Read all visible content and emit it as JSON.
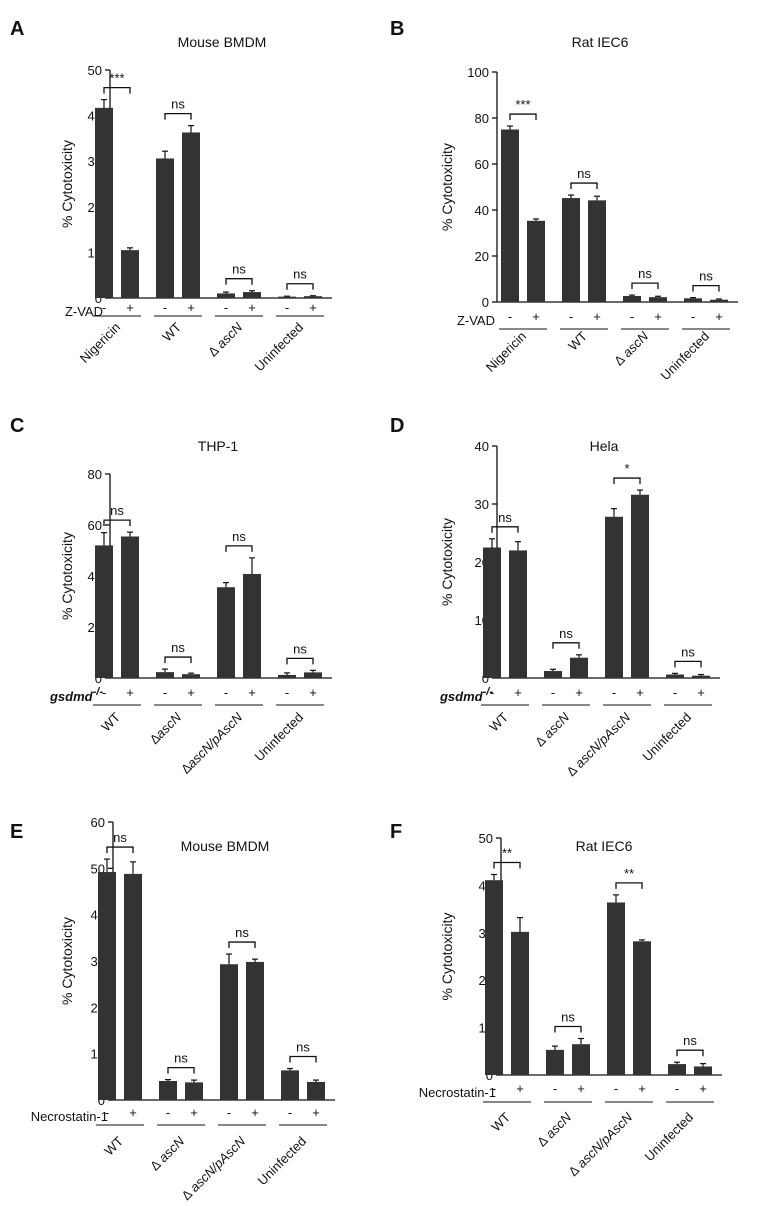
{
  "figure": {
    "panel_letters": [
      "A",
      "B",
      "C",
      "D",
      "E",
      "F"
    ]
  },
  "chart_data": [
    {
      "panel": "A",
      "type": "bar",
      "title": "Mouse BMDM",
      "ylabel": "% Cytotoxicity",
      "ylim": [
        0,
        50
      ],
      "yticks": [
        0,
        10,
        20,
        30,
        40,
        50
      ],
      "treatment_label": "Z-VAD",
      "signs": [
        "-",
        "+"
      ],
      "groups": [
        {
          "label": "Nigericin",
          "values": [
            41.7,
            10.5
          ],
          "errors": [
            1.8,
            0.5
          ],
          "sig": "***"
        },
        {
          "label": "WT",
          "values": [
            30.6,
            36.3
          ],
          "errors": [
            1.6,
            1.5
          ],
          "sig": "ns"
        },
        {
          "label": "∆ ascN",
          "values": [
            1.0,
            1.3
          ],
          "errors": [
            0.3,
            0.3
          ],
          "sig": "ns"
        },
        {
          "label": "Uninfected",
          "values": [
            0.3,
            0.4
          ],
          "errors": [
            0.1,
            0.1
          ],
          "sig": "ns"
        }
      ]
    },
    {
      "panel": "B",
      "type": "bar",
      "title": "Rat IEC6",
      "ylabel": "% Cytotoxicity",
      "ylim": [
        0,
        100
      ],
      "yticks": [
        0,
        20,
        40,
        60,
        80,
        100
      ],
      "treatment_label": "Z-VAD",
      "signs": [
        "-",
        "+"
      ],
      "groups": [
        {
          "label": "Nigericin",
          "values": [
            75.0,
            35.3
          ],
          "errors": [
            1.5,
            0.8
          ],
          "sig": "***"
        },
        {
          "label": "WT",
          "values": [
            45.2,
            44.2
          ],
          "errors": [
            1.3,
            1.8
          ],
          "sig": "ns"
        },
        {
          "label": "∆ ascN",
          "values": [
            2.6,
            2.1
          ],
          "errors": [
            0.4,
            0.4
          ],
          "sig": "ns"
        },
        {
          "label": "Uninfected",
          "values": [
            1.6,
            1.0
          ],
          "errors": [
            0.3,
            0.3
          ],
          "sig": "ns"
        }
      ]
    },
    {
      "panel": "C",
      "type": "bar",
      "title": "THP-1",
      "ylabel": "% Cytotoxicity",
      "ylim": [
        0,
        80
      ],
      "yticks": [
        0,
        20,
        40,
        60,
        80
      ],
      "treatment_label": "gsdmd",
      "treatment_sup": "-/-",
      "signs": [
        "-",
        "+"
      ],
      "groups": [
        {
          "label": "WT",
          "values": [
            52.0,
            55.5
          ],
          "errors": [
            5.0,
            1.7
          ],
          "sig": "ns"
        },
        {
          "label": "∆ascN",
          "values": [
            2.3,
            1.5
          ],
          "errors": [
            1.2,
            0.4
          ],
          "sig": "ns"
        },
        {
          "label": "∆ascN/pAscN",
          "values": [
            35.6,
            40.8
          ],
          "errors": [
            1.8,
            6.3
          ],
          "sig": "ns"
        },
        {
          "label": "Uninfected",
          "values": [
            1.2,
            2.2
          ],
          "errors": [
            0.8,
            0.8
          ],
          "sig": "ns"
        }
      ]
    },
    {
      "panel": "D",
      "type": "bar",
      "title": "Hela",
      "ylabel": "% Cytotoxicity",
      "ylim": [
        0,
        40
      ],
      "yticks": [
        0,
        10,
        20,
        30,
        40
      ],
      "treatment_label": "gsdmd",
      "treatment_sup": "-/-",
      "signs": [
        "-",
        "+"
      ],
      "groups": [
        {
          "label": "WT",
          "values": [
            22.5,
            22.0
          ],
          "errors": [
            1.5,
            1.5
          ],
          "sig": "ns"
        },
        {
          "label": "∆ ascN",
          "values": [
            1.2,
            3.5
          ],
          "errors": [
            0.3,
            0.5
          ],
          "sig": "ns"
        },
        {
          "label": "∆ ascN/pAscN",
          "values": [
            27.8,
            31.6
          ],
          "errors": [
            1.4,
            0.8
          ],
          "sig": "*"
        },
        {
          "label": "Uninfected",
          "values": [
            0.6,
            0.4
          ],
          "errors": [
            0.2,
            0.2
          ],
          "sig": "ns"
        }
      ]
    },
    {
      "panel": "E",
      "type": "bar",
      "title": "Mouse BMDM",
      "ylabel": "% Cytotoxicity",
      "ylim": [
        0,
        60
      ],
      "yticks": [
        0,
        10,
        20,
        30,
        40,
        50,
        60
      ],
      "treatment_label": "Necrostatin-1",
      "signs": [
        "-",
        "+"
      ],
      "groups": [
        {
          "label": "WT",
          "values": [
            49.2,
            48.8
          ],
          "errors": [
            2.8,
            2.6
          ],
          "sig": "ns"
        },
        {
          "label": "∆ ascN",
          "values": [
            4.1,
            3.8
          ],
          "errors": [
            0.3,
            0.5
          ],
          "sig": "ns"
        },
        {
          "label": "∆ ascN/pAscN",
          "values": [
            29.3,
            29.8
          ],
          "errors": [
            2.2,
            0.6
          ],
          "sig": "ns"
        },
        {
          "label": "Uninfected",
          "values": [
            6.4,
            3.9
          ],
          "errors": [
            0.4,
            0.4
          ],
          "sig": "ns"
        }
      ]
    },
    {
      "panel": "F",
      "type": "bar",
      "title": "Rat IEC6",
      "ylabel": "% Cytotoxicity",
      "ylim": [
        0,
        50
      ],
      "yticks": [
        0,
        10,
        20,
        30,
        40,
        50
      ],
      "treatment_label": "Necrostatin-1",
      "signs": [
        "-",
        "+"
      ],
      "groups": [
        {
          "label": "WT",
          "values": [
            41.1,
            30.2
          ],
          "errors": [
            1.2,
            3.0
          ],
          "sig": "**"
        },
        {
          "label": "∆ ascN",
          "values": [
            5.3,
            6.5
          ],
          "errors": [
            0.8,
            1.2
          ],
          "sig": "ns"
        },
        {
          "label": "∆ ascN/pAscN",
          "values": [
            36.4,
            28.2
          ],
          "errors": [
            1.6,
            0.3
          ],
          "sig": "**"
        },
        {
          "label": "Uninfected",
          "values": [
            2.3,
            1.8
          ],
          "errors": [
            0.4,
            0.6
          ],
          "sig": "ns"
        }
      ]
    }
  ]
}
